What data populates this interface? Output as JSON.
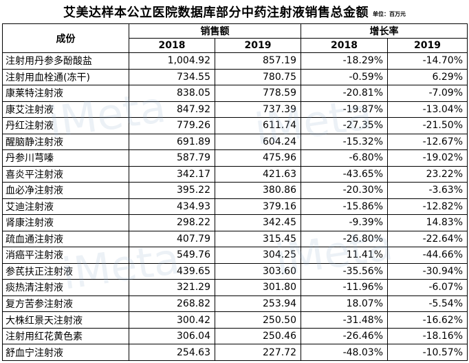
{
  "title": "艾美达样本公立医院数据库部分中药注射液销售总金额",
  "unit": "单位：百万元",
  "headers": {
    "product": "成份",
    "sales": "销售额",
    "growth": "增长率",
    "y2018": "2018",
    "y2019": "2019",
    "g2018": "2018",
    "g2019": "2019"
  },
  "rows": [
    {
      "name": "注射用丹参多酚酸盐",
      "s2018": "1,004.92",
      "s2019": "857.19",
      "g2018": "-18.29%",
      "g2019": "-14.70%"
    },
    {
      "name": "注射用血栓通(冻干)",
      "s2018": "734.55",
      "s2019": "780.75",
      "g2018": "-0.59%",
      "g2019": "6.29%"
    },
    {
      "name": "康莱特注射液",
      "s2018": "838.05",
      "s2019": "778.59",
      "g2018": "-20.81%",
      "g2019": "-7.09%"
    },
    {
      "name": "康艾注射液",
      "s2018": "847.92",
      "s2019": "737.39",
      "g2018": "-19.87%",
      "g2019": "-13.04%"
    },
    {
      "name": "丹红注射液",
      "s2018": "779.26",
      "s2019": "611.74",
      "g2018": "-27.35%",
      "g2019": "-21.50%"
    },
    {
      "name": "醒脑静注射液",
      "s2018": "691.89",
      "s2019": "604.24",
      "g2018": "-15.32%",
      "g2019": "-12.67%"
    },
    {
      "name": "丹参川芎嗪",
      "s2018": "587.79",
      "s2019": "475.96",
      "g2018": "-6.80%",
      "g2019": "-19.02%"
    },
    {
      "name": "喜炎平注射液",
      "s2018": "342.17",
      "s2019": "421.63",
      "g2018": "-43.65%",
      "g2019": "23.22%"
    },
    {
      "name": "血必净注射液",
      "s2018": "395.22",
      "s2019": "380.86",
      "g2018": "-20.30%",
      "g2019": "-3.63%"
    },
    {
      "name": "艾迪注射液",
      "s2018": "434.93",
      "s2019": "379.16",
      "g2018": "-15.86%",
      "g2019": "-12.82%"
    },
    {
      "name": "肾康注射液",
      "s2018": "298.22",
      "s2019": "342.45",
      "g2018": "-9.39%",
      "g2019": "14.83%"
    },
    {
      "name": "疏血通注射液",
      "s2018": "407.79",
      "s2019": "315.45",
      "g2018": "-26.80%",
      "g2019": "-22.64%"
    },
    {
      "name": "消癌平注射液",
      "s2018": "549.76",
      "s2019": "304.25",
      "g2018": "11.41%",
      "g2019": "-44.66%"
    },
    {
      "name": "参芪扶正注射液",
      "s2018": "439.65",
      "s2019": "303.60",
      "g2018": "-35.56%",
      "g2019": "-30.94%"
    },
    {
      "name": "痰热清注射液",
      "s2018": "321.29",
      "s2019": "301.80",
      "g2018": "-11.96%",
      "g2019": "-6.07%"
    },
    {
      "name": "复方苦参注射液",
      "s2018": "268.82",
      "s2019": "253.94",
      "g2018": "18.07%",
      "g2019": "-5.54%"
    },
    {
      "name": "大株红景天注射液",
      "s2018": "300.42",
      "s2019": "250.50",
      "g2018": "-31.48%",
      "g2019": "-16.62%"
    },
    {
      "name": "注射用红花黄色素",
      "s2018": "306.04",
      "s2019": "250.46",
      "g2018": "-26.46%",
      "g2019": "-18.16%"
    },
    {
      "name": "舒血宁注射液",
      "s2018": "254.63",
      "s2019": "227.72",
      "g2018": "-48.03%",
      "g2019": "-10.57%"
    }
  ]
}
